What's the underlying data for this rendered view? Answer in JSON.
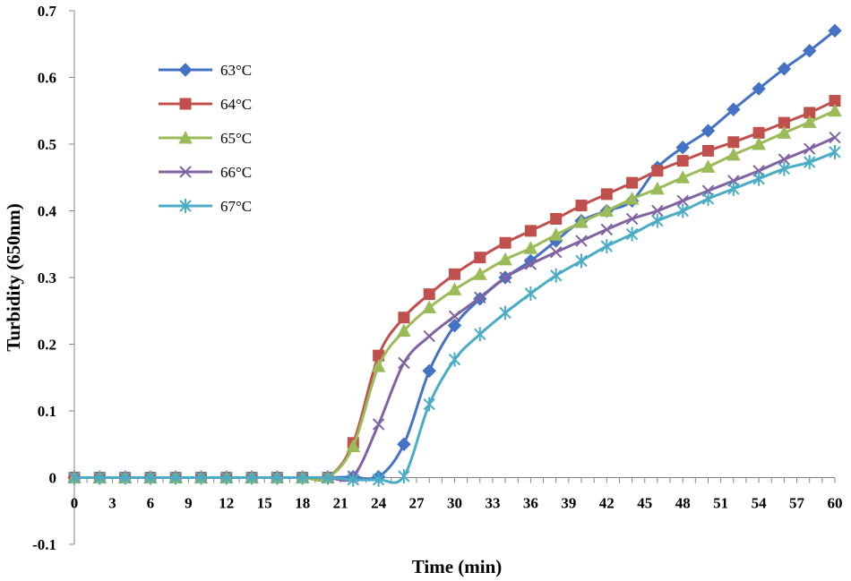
{
  "chart_data": {
    "type": "line",
    "title": "",
    "xlabel": "Time (min)",
    "ylabel": "Turbidity (650nm)",
    "xlim": [
      0,
      60
    ],
    "ylim": [
      -0.1,
      0.7
    ],
    "x_ticks": [
      "0",
      "3",
      "6",
      "9",
      "12",
      "15",
      "18",
      "21",
      "24",
      "27",
      "30",
      "33",
      "36",
      "39",
      "42",
      "45",
      "48",
      "51",
      "54",
      "57",
      "60"
    ],
    "y_ticks": [
      "-0.1",
      "0",
      "0.1",
      "0.2",
      "0.3",
      "0.4",
      "0.5",
      "0.6",
      "0.7"
    ],
    "grid": false,
    "legend_position": "top-left",
    "x": [
      0,
      2,
      4,
      6,
      8,
      10,
      12,
      14,
      16,
      18,
      20,
      22,
      24,
      26,
      28,
      30,
      32,
      34,
      36,
      38,
      40,
      42,
      44,
      46,
      48,
      50,
      52,
      54,
      56,
      58,
      60
    ],
    "series": [
      {
        "name": "63°C",
        "color": "#4472C4",
        "marker": "diamond",
        "values": [
          0,
          0,
          0,
          0,
          0,
          0,
          0,
          0,
          0,
          0,
          0,
          0.001,
          0.001,
          0.05,
          0.16,
          0.228,
          0.268,
          0.3,
          0.325,
          0.355,
          0.385,
          0.4,
          0.415,
          0.465,
          0.495,
          0.52,
          0.552,
          0.583,
          0.613,
          0.64,
          0.67
        ]
      },
      {
        "name": "64°C",
        "color": "#C0504D",
        "marker": "square",
        "values": [
          0,
          0,
          0,
          0,
          0,
          0,
          0,
          0,
          0,
          0,
          0,
          0.052,
          0.183,
          0.24,
          0.275,
          0.305,
          0.33,
          0.352,
          0.37,
          0.388,
          0.408,
          0.425,
          0.442,
          0.46,
          0.475,
          0.49,
          0.503,
          0.517,
          0.532,
          0.547,
          0.565
        ]
      },
      {
        "name": "65°C",
        "color": "#9BBB59",
        "marker": "triangle",
        "values": [
          0,
          0,
          0,
          0,
          0,
          0,
          0,
          0,
          0,
          0,
          0,
          0.047,
          0.167,
          0.22,
          0.255,
          0.282,
          0.305,
          0.327,
          0.344,
          0.364,
          0.383,
          0.4,
          0.418,
          0.433,
          0.45,
          0.466,
          0.484,
          0.5,
          0.517,
          0.533,
          0.55
        ]
      },
      {
        "name": "66°C",
        "color": "#8064A2",
        "marker": "x",
        "values": [
          0,
          0,
          0,
          0,
          0,
          0,
          0,
          0,
          0,
          0,
          0,
          0.002,
          0.08,
          0.172,
          0.212,
          0.242,
          0.27,
          0.3,
          0.32,
          0.338,
          0.355,
          0.372,
          0.388,
          0.4,
          0.415,
          0.43,
          0.445,
          0.46,
          0.477,
          0.493,
          0.51
        ]
      },
      {
        "name": "67°C",
        "color": "#4BACC6",
        "marker": "star",
        "values": [
          0,
          0,
          0,
          0,
          0,
          0,
          0,
          0,
          0,
          0,
          0,
          -0.003,
          -0.003,
          0.002,
          0.11,
          0.177,
          0.215,
          0.247,
          0.276,
          0.303,
          0.325,
          0.347,
          0.365,
          0.385,
          0.4,
          0.418,
          0.433,
          0.448,
          0.463,
          0.473,
          0.488
        ]
      }
    ]
  }
}
